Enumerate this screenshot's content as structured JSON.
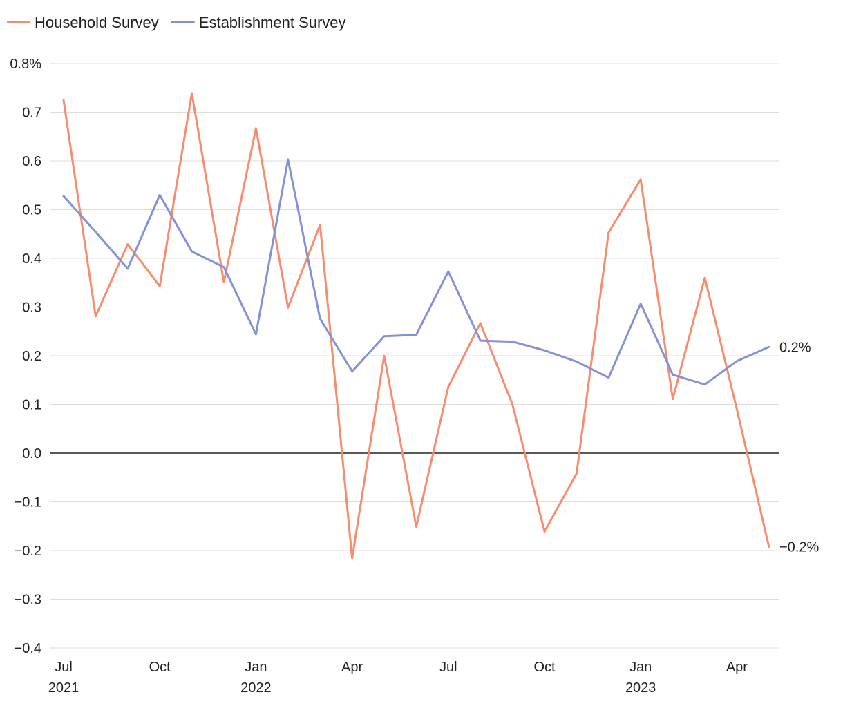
{
  "chart_data": {
    "type": "line",
    "title": "",
    "xlabel": "",
    "ylabel": "",
    "ylim": [
      -0.4,
      0.8
    ],
    "grid": true,
    "legend_position": "top-left",
    "x": [
      "2021-07",
      "2021-08",
      "2021-09",
      "2021-10",
      "2021-11",
      "2021-12",
      "2022-01",
      "2022-02",
      "2022-03",
      "2022-04",
      "2022-05",
      "2022-06",
      "2022-07",
      "2022-08",
      "2022-09",
      "2022-10",
      "2022-11",
      "2022-12",
      "2023-01",
      "2023-02",
      "2023-03",
      "2023-04",
      "2023-05"
    ],
    "y_ticks": [
      {
        "value": 0.8,
        "label": "0.8%"
      },
      {
        "value": 0.7,
        "label": "0.7"
      },
      {
        "value": 0.6,
        "label": "0.6"
      },
      {
        "value": 0.5,
        "label": "0.5"
      },
      {
        "value": 0.4,
        "label": "0.4"
      },
      {
        "value": 0.3,
        "label": "0.3"
      },
      {
        "value": 0.2,
        "label": "0.2"
      },
      {
        "value": 0.1,
        "label": "0.1"
      },
      {
        "value": 0.0,
        "label": "0.0"
      },
      {
        "value": -0.1,
        "label": "−0.1"
      },
      {
        "value": -0.2,
        "label": "−0.2"
      },
      {
        "value": -0.3,
        "label": "−0.3"
      },
      {
        "value": -0.4,
        "label": "−0.4"
      }
    ],
    "x_ticks": [
      {
        "index": 0,
        "label": "Jul",
        "year": "2021"
      },
      {
        "index": 3,
        "label": "Oct",
        "year": ""
      },
      {
        "index": 6,
        "label": "Jan",
        "year": "2022"
      },
      {
        "index": 9,
        "label": "Apr",
        "year": ""
      },
      {
        "index": 12,
        "label": "Jul",
        "year": ""
      },
      {
        "index": 15,
        "label": "Oct",
        "year": ""
      },
      {
        "index": 18,
        "label": "Jan",
        "year": "2023"
      },
      {
        "index": 21,
        "label": "Apr",
        "year": ""
      }
    ],
    "series": [
      {
        "name": "Household Survey",
        "color": "#f98b6e",
        "end_label": "−0.2%",
        "values": [
          0.725,
          0.281,
          0.429,
          0.343,
          0.739,
          0.351,
          0.667,
          0.299,
          0.469,
          -0.216,
          0.2,
          -0.151,
          0.136,
          0.267,
          0.1,
          -0.161,
          -0.042,
          0.453,
          0.562,
          0.111,
          0.36,
          0.09,
          -0.192
        ]
      },
      {
        "name": "Establishment Survey",
        "color": "#8391d6",
        "end_label": "0.2%",
        "values": [
          0.528,
          0.454,
          0.379,
          0.53,
          0.414,
          0.382,
          0.244,
          0.603,
          0.276,
          0.168,
          0.24,
          0.243,
          0.373,
          0.231,
          0.229,
          0.211,
          0.188,
          0.155,
          0.307,
          0.161,
          0.141,
          0.189,
          0.218
        ]
      }
    ]
  }
}
